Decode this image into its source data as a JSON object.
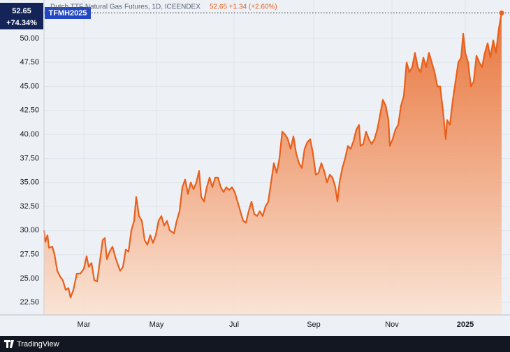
{
  "chart_data": {
    "type": "area",
    "title": "Dutch TTF Natural Gas Futures, 1D, ICEENDEX",
    "quote": "52.65 +1.34 (+2.60%)",
    "badge": {
      "price": "52.65",
      "symbol": "TFMH2025",
      "change": "+74.34%"
    },
    "footer": "TradingView",
    "color": "#e8601c",
    "grid": true,
    "xlim": [
      0,
      667
    ],
    "xticks": [
      {
        "value": 57,
        "label": "Mar"
      },
      {
        "value": 161,
        "label": "May"
      },
      {
        "value": 272,
        "label": "Jul"
      },
      {
        "value": 386,
        "label": "Sep"
      },
      {
        "value": 498,
        "label": "Nov"
      },
      {
        "value": 603,
        "label": "2025"
      }
    ],
    "ylim": [
      21.2,
      54
    ],
    "yticks": [
      {
        "value": 22.5,
        "label": "22.50"
      },
      {
        "value": 25,
        "label": "25.00"
      },
      {
        "value": 27.5,
        "label": "27.50"
      },
      {
        "value": 30,
        "label": "30.00"
      },
      {
        "value": 32.5,
        "label": "32.50"
      },
      {
        "value": 35,
        "label": "35.00"
      },
      {
        "value": 37.5,
        "label": "37.50"
      },
      {
        "value": 40,
        "label": "40.00"
      },
      {
        "value": 42.5,
        "label": "42.50"
      },
      {
        "value": 45,
        "label": "45.00"
      },
      {
        "value": 47.5,
        "label": "47.50"
      },
      {
        "value": 50,
        "label": "50.00"
      }
    ],
    "x": [
      0,
      2,
      5,
      7,
      12,
      15,
      19,
      23,
      27,
      31,
      35,
      38,
      42,
      47,
      52,
      57,
      61,
      64,
      68,
      72,
      76,
      80,
      84,
      87,
      90,
      94,
      98,
      103,
      109,
      113,
      117,
      121,
      125,
      129,
      132,
      136,
      140,
      144,
      148,
      152,
      156,
      160,
      164,
      168,
      172,
      176,
      180,
      186,
      190,
      194,
      198,
      202,
      206,
      210,
      214,
      218,
      222,
      225,
      229,
      233,
      237,
      241,
      245,
      249,
      253,
      257,
      261,
      265,
      269,
      273,
      277,
      281,
      285,
      289,
      293,
      297,
      301,
      305,
      309,
      313,
      317,
      321,
      325,
      329,
      333,
      337,
      341,
      345,
      349,
      353,
      357,
      361,
      365,
      369,
      373,
      377,
      381,
      385,
      389,
      393,
      397,
      401,
      405,
      409,
      413,
      417,
      420,
      423,
      427,
      431,
      435,
      439,
      443,
      447,
      451,
      453,
      457,
      461,
      465,
      469,
      473,
      477,
      481,
      485,
      489,
      493,
      495,
      499,
      503,
      507,
      511,
      515,
      519,
      523,
      527,
      531,
      535,
      539,
      543,
      547,
      551,
      555,
      559,
      563,
      567,
      571,
      575,
      577,
      581,
      585,
      589,
      593,
      597,
      600,
      603,
      607,
      611,
      615,
      619,
      623,
      627,
      631,
      635,
      639,
      643,
      647,
      651,
      655
    ],
    "values": [
      30.0,
      28.8,
      29.5,
      28.2,
      28.3,
      27.5,
      25.8,
      25.2,
      24.8,
      23.8,
      24.0,
      23.0,
      23.8,
      25.5,
      25.5,
      26.0,
      27.3,
      26.2,
      26.6,
      24.8,
      24.7,
      26.8,
      29.0,
      29.2,
      27.0,
      27.8,
      28.3,
      27.0,
      25.8,
      26.2,
      28.0,
      27.8,
      30.0,
      31.0,
      33.5,
      31.5,
      31.0,
      29.0,
      28.5,
      29.5,
      28.7,
      29.5,
      31.0,
      31.5,
      30.5,
      31.0,
      30.0,
      29.7,
      31.0,
      32.0,
      34.5,
      35.3,
      33.8,
      35.0,
      34.3,
      35.0,
      36.2,
      33.5,
      33.0,
      34.5,
      35.5,
      34.5,
      35.5,
      35.5,
      34.5,
      34.0,
      34.5,
      34.2,
      34.5,
      34.0,
      33.0,
      32.0,
      31.0,
      30.8,
      32.0,
      33.0,
      31.7,
      31.5,
      32.0,
      31.5,
      32.5,
      33.0,
      35.0,
      37.0,
      36.0,
      37.5,
      40.3,
      40.0,
      39.5,
      38.5,
      39.8,
      38.0,
      37.0,
      36.5,
      38.5,
      39.2,
      39.5,
      38.0,
      35.8,
      36.0,
      37.0,
      36.2,
      35.0,
      35.8,
      35.5,
      34.5,
      33.0,
      35.0,
      36.5,
      37.5,
      38.8,
      38.5,
      39.3,
      40.5,
      41.0,
      38.8,
      39.0,
      40.3,
      39.5,
      39.0,
      39.5,
      40.5,
      42.0,
      43.6,
      43.0,
      41.5,
      38.8,
      39.5,
      40.5,
      41.0,
      43.0,
      44.0,
      47.5,
      46.5,
      47.0,
      48.5,
      47.0,
      46.5,
      48.0,
      47.0,
      48.5,
      47.5,
      46.5,
      45.0,
      45.0,
      42.5,
      39.5,
      41.5,
      41.0,
      43.5,
      45.5,
      47.5,
      48.0,
      50.5,
      48.5,
      47.5,
      45.0,
      45.5,
      48.2,
      47.5,
      47.0,
      48.5,
      49.5,
      48.0,
      49.8,
      48.5,
      51.0,
      52.65
    ]
  }
}
